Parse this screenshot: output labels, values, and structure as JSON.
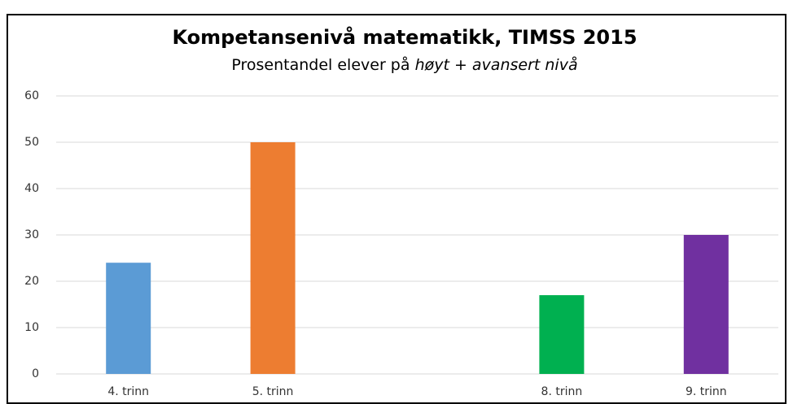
{
  "chart_data": {
    "type": "bar",
    "title": "Kompetansenivå matematikk, TIMSS 2015",
    "subtitle": "Prosentandel elever på",
    "subtitle_emphasis": "høyt + avansert nivå",
    "categories": [
      "4. trinn",
      "5. trinn",
      null,
      "8. trinn",
      "9. trinn"
    ],
    "values": [
      24,
      50,
      null,
      17,
      30
    ],
    "colors": [
      "#5b9bd5",
      "#ed7d31",
      null,
      "#00b050",
      "#7030a0"
    ],
    "ylim": [
      0,
      60
    ],
    "yticks": [
      0,
      10,
      20,
      30,
      40,
      50,
      60
    ],
    "grid": true
  }
}
